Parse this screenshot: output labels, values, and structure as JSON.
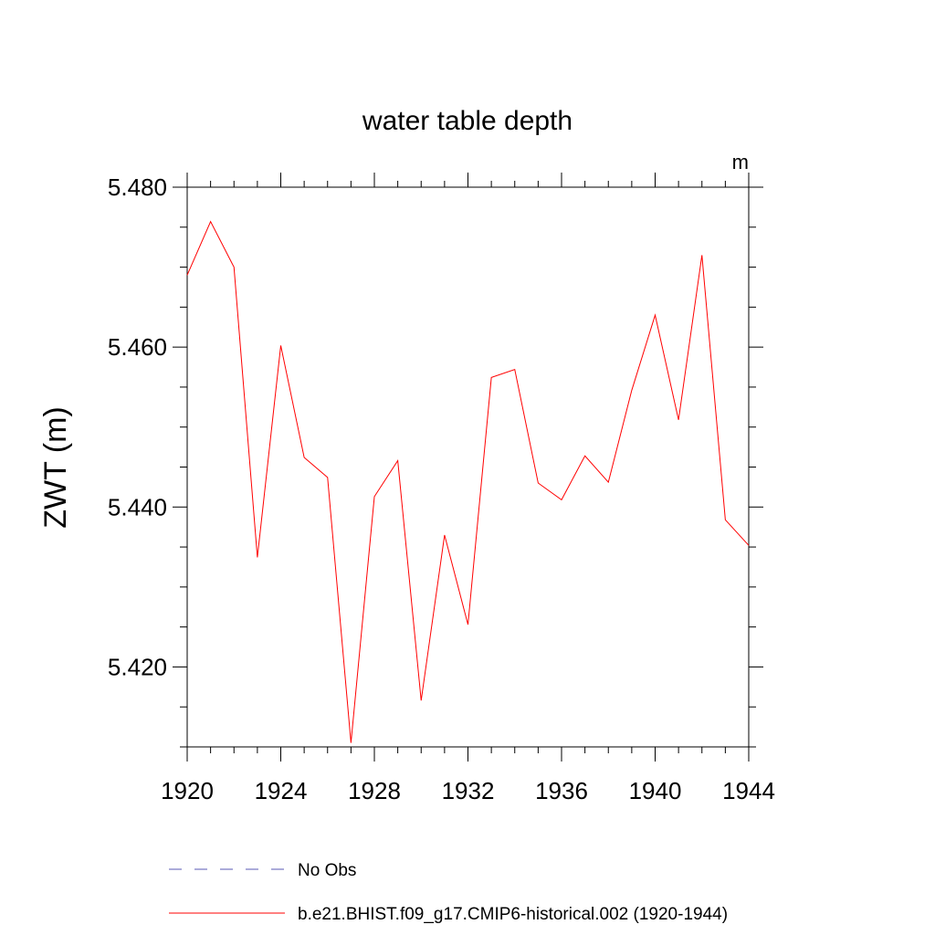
{
  "chart_data": {
    "type": "line",
    "title": "water table depth",
    "ylabel": "ZWT  (m)",
    "xlabel": "",
    "units_label": "m",
    "xlim": [
      1920,
      1944
    ],
    "ylim": [
      5.41,
      5.48
    ],
    "x_ticks": [
      1920,
      1924,
      1928,
      1932,
      1936,
      1940,
      1944
    ],
    "x_tick_labels": [
      "1920",
      "1924",
      "1928",
      "1932",
      "1936",
      "1940",
      "1944"
    ],
    "y_ticks": [
      5.42,
      5.44,
      5.46,
      5.48
    ],
    "y_tick_labels": [
      "5.420",
      "5.440",
      "5.460",
      "5.480"
    ],
    "y_minor_step": 0.005,
    "x_minor_step": 1,
    "grid": false,
    "legend_position": "bottom",
    "series": [
      {
        "name": "No Obs",
        "style": "dashed",
        "color": "#5a5ab4",
        "x": [],
        "values": []
      },
      {
        "name": "b.e21.BHIST.f09_g17.CMIP6-historical.002 (1920-1944)",
        "style": "solid",
        "color": "#ff0000",
        "x": [
          1920,
          1921,
          1922,
          1923,
          1924,
          1925,
          1926,
          1927,
          1928,
          1929,
          1930,
          1931,
          1932,
          1933,
          1934,
          1935,
          1936,
          1937,
          1938,
          1939,
          1940,
          1941,
          1942,
          1943,
          1944
        ],
        "values": [
          5.469,
          5.4757,
          5.47,
          5.4337,
          5.4602,
          5.4462,
          5.4437,
          5.4105,
          5.4413,
          5.4458,
          5.4158,
          5.4365,
          5.4253,
          5.4562,
          5.4572,
          5.443,
          5.4409,
          5.4464,
          5.4431,
          5.4546,
          5.464,
          5.4509,
          5.4715,
          5.4384,
          5.4352
        ]
      }
    ]
  }
}
